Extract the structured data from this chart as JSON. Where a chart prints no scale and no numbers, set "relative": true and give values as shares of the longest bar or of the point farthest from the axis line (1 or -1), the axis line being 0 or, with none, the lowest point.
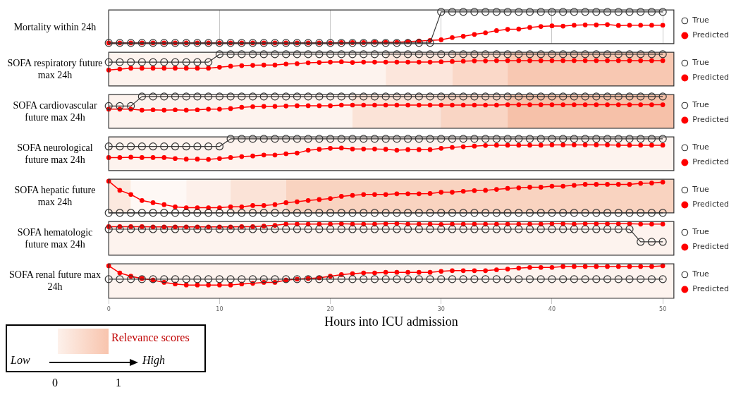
{
  "chart_data": [
    {
      "type": "line",
      "ylabel": "Mortality within 24h",
      "relative": true,
      "x": [
        0,
        1,
        2,
        3,
        4,
        5,
        6,
        7,
        8,
        9,
        10,
        11,
        12,
        13,
        14,
        15,
        16,
        17,
        18,
        19,
        20,
        21,
        22,
        23,
        24,
        25,
        26,
        27,
        28,
        29,
        30,
        31,
        32,
        33,
        34,
        35,
        36,
        37,
        38,
        39,
        40,
        41,
        42,
        43,
        44,
        45,
        46,
        47,
        48,
        49,
        50
      ],
      "xlim": [
        0,
        51
      ],
      "xticks": [
        0,
        10,
        20,
        30,
        40,
        50
      ],
      "tick_labels": false,
      "grid": "x",
      "legend": "right",
      "series": [
        {
          "name": "True",
          "color": "#333333",
          "marker": "circle",
          "values": [
            0.02,
            0.02,
            0.02,
            0.02,
            0.02,
            0.02,
            0.02,
            0.02,
            0.02,
            0.02,
            0.02,
            0.02,
            0.02,
            0.02,
            0.02,
            0.02,
            0.02,
            0.02,
            0.02,
            0.02,
            0.02,
            0.02,
            0.02,
            0.02,
            0.02,
            0.02,
            0.02,
            0.02,
            0.02,
            0.02,
            1,
            1,
            1,
            1,
            1,
            1,
            1,
            1,
            1,
            1,
            1,
            1,
            1,
            1,
            1,
            1,
            1,
            1,
            1,
            1,
            1
          ]
        },
        {
          "name": "Predicted",
          "color": "#ff0000",
          "marker": "circle",
          "values": [
            0.02,
            0.02,
            0.02,
            0.02,
            0.02,
            0.02,
            0.02,
            0.02,
            0.02,
            0.02,
            0.02,
            0.02,
            0.02,
            0.02,
            0.02,
            0.02,
            0.02,
            0.02,
            0.02,
            0.02,
            0.02,
            0.03,
            0.03,
            0.03,
            0.04,
            0.04,
            0.04,
            0.06,
            0.08,
            0.1,
            0.12,
            0.19,
            0.23,
            0.29,
            0.34,
            0.41,
            0.45,
            0.46,
            0.51,
            0.54,
            0.56,
            0.55,
            0.58,
            0.59,
            0.59,
            0.6,
            0.57,
            0.58,
            0.58,
            0.58,
            0.58
          ]
        }
      ]
    },
    {
      "type": "line",
      "ylabel": "SOFA respiratory future max 24h",
      "relative": true,
      "x": [
        0,
        1,
        2,
        3,
        4,
        5,
        6,
        7,
        8,
        9,
        10,
        11,
        12,
        13,
        14,
        15,
        16,
        17,
        18,
        19,
        20,
        21,
        22,
        23,
        24,
        25,
        26,
        27,
        28,
        29,
        30,
        31,
        32,
        33,
        34,
        35,
        36,
        37,
        38,
        39,
        40,
        41,
        42,
        43,
        44,
        45,
        46,
        47,
        48,
        49,
        50
      ],
      "xlim": [
        0,
        51
      ],
      "xticks": [
        0,
        10,
        20,
        30,
        40,
        50
      ],
      "tick_labels": false,
      "grid": "x",
      "legend": "right",
      "bands": [
        {
          "axis": "x",
          "from": 0,
          "to": 25,
          "color": "#fdf3ee"
        },
        {
          "axis": "x",
          "from": 25,
          "to": 31,
          "color": "#fce6dc"
        },
        {
          "axis": "x",
          "from": 31,
          "to": 36,
          "color": "#fad8c8"
        },
        {
          "axis": "x",
          "from": 36,
          "to": 51,
          "color": "#f8c8b2"
        }
      ],
      "series": [
        {
          "name": "True",
          "color": "#333333",
          "marker": "circle",
          "values": [
            0.75,
            0.75,
            0.75,
            0.75,
            0.75,
            0.75,
            0.75,
            0.75,
            0.75,
            0.75,
            1,
            1,
            1,
            1,
            1,
            1,
            1,
            1,
            1,
            1,
            1,
            1,
            1,
            1,
            1,
            1,
            1,
            1,
            1,
            1,
            1,
            1,
            1,
            1,
            1,
            1,
            1,
            1,
            1,
            1,
            1,
            1,
            1,
            1,
            1,
            1,
            1,
            1,
            1,
            1,
            1
          ]
        },
        {
          "name": "Predicted",
          "color": "#ff0000",
          "marker": "circle",
          "values": [
            0.5,
            0.53,
            0.56,
            0.56,
            0.56,
            0.56,
            0.56,
            0.56,
            0.56,
            0.56,
            0.59,
            0.62,
            0.64,
            0.65,
            0.66,
            0.66,
            0.69,
            0.7,
            0.73,
            0.74,
            0.75,
            0.76,
            0.74,
            0.75,
            0.75,
            0.75,
            0.75,
            0.75,
            0.75,
            0.75,
            0.76,
            0.77,
            0.78,
            0.79,
            0.79,
            0.8,
            0.8,
            0.8,
            0.8,
            0.8,
            0.8,
            0.8,
            0.8,
            0.8,
            0.8,
            0.8,
            0.8,
            0.8,
            0.8,
            0.8,
            0.8
          ]
        }
      ]
    },
    {
      "type": "line",
      "ylabel": "SOFA cardiovascular future max 24h",
      "relative": true,
      "x": [
        0,
        1,
        2,
        3,
        4,
        5,
        6,
        7,
        8,
        9,
        10,
        11,
        12,
        13,
        14,
        15,
        16,
        17,
        18,
        19,
        20,
        21,
        22,
        23,
        24,
        25,
        26,
        27,
        28,
        29,
        30,
        31,
        32,
        33,
        34,
        35,
        36,
        37,
        38,
        39,
        40,
        41,
        42,
        43,
        44,
        45,
        46,
        47,
        48,
        49,
        50
      ],
      "xlim": [
        0,
        51
      ],
      "xticks": [
        0,
        10,
        20,
        30,
        40,
        50
      ],
      "tick_labels": false,
      "grid": "x",
      "legend": "right",
      "bands": [
        {
          "axis": "x",
          "from": 0,
          "to": 22,
          "color": "#fdf3ee"
        },
        {
          "axis": "x",
          "from": 22,
          "to": 30,
          "color": "#fbe3d7"
        },
        {
          "axis": "x",
          "from": 30,
          "to": 36,
          "color": "#f9d5c4"
        },
        {
          "axis": "x",
          "from": 36,
          "to": 51,
          "color": "#f6c1a9"
        }
      ],
      "series": [
        {
          "name": "True",
          "color": "#333333",
          "marker": "circle",
          "values": [
            0.7,
            0.7,
            0.7,
            1,
            1,
            1,
            1,
            1,
            1,
            1,
            1,
            1,
            1,
            1,
            1,
            1,
            1,
            1,
            1,
            1,
            1,
            1,
            1,
            1,
            1,
            1,
            1,
            1,
            1,
            1,
            1,
            1,
            1,
            1,
            1,
            1,
            1,
            1,
            1,
            1,
            1,
            1,
            1,
            1,
            1,
            1,
            1,
            1,
            1,
            1,
            1
          ]
        },
        {
          "name": "Predicted",
          "color": "#ff0000",
          "marker": "circle",
          "values": [
            0.6,
            0.6,
            0.6,
            0.57,
            0.58,
            0.57,
            0.58,
            0.57,
            0.58,
            0.6,
            0.6,
            0.62,
            0.66,
            0.68,
            0.69,
            0.69,
            0.7,
            0.71,
            0.71,
            0.71,
            0.71,
            0.73,
            0.73,
            0.73,
            0.73,
            0.73,
            0.73,
            0.73,
            0.73,
            0.73,
            0.73,
            0.73,
            0.73,
            0.73,
            0.73,
            0.73,
            0.74,
            0.74,
            0.74,
            0.74,
            0.74,
            0.74,
            0.74,
            0.74,
            0.74,
            0.74,
            0.74,
            0.74,
            0.74,
            0.74,
            0.74
          ]
        }
      ]
    },
    {
      "type": "line",
      "ylabel": "SOFA neurological future max 24h",
      "relative": true,
      "x": [
        0,
        1,
        2,
        3,
        4,
        5,
        6,
        7,
        8,
        9,
        10,
        11,
        12,
        13,
        14,
        15,
        16,
        17,
        18,
        19,
        20,
        21,
        22,
        23,
        24,
        25,
        26,
        27,
        28,
        29,
        30,
        31,
        32,
        33,
        34,
        35,
        36,
        37,
        38,
        39,
        40,
        41,
        42,
        43,
        44,
        45,
        46,
        47,
        48,
        49,
        50
      ],
      "xlim": [
        0,
        51
      ],
      "xticks": [
        0,
        10,
        20,
        30,
        40,
        50
      ],
      "tick_labels": false,
      "grid": "x",
      "legend": "right",
      "bands": [
        {
          "axis": "x",
          "from": 0,
          "to": 51,
          "color": "#fdf3ee"
        }
      ],
      "series": [
        {
          "name": "True",
          "color": "#333333",
          "marker": "circle",
          "values": [
            0.76,
            0.76,
            0.76,
            0.76,
            0.76,
            0.76,
            0.76,
            0.76,
            0.76,
            0.76,
            0.76,
            1,
            1,
            1,
            1,
            1,
            1,
            1,
            1,
            1,
            1,
            1,
            1,
            1,
            1,
            1,
            1,
            1,
            1,
            1,
            1,
            1,
            1,
            1,
            1,
            1,
            1,
            1,
            1,
            1,
            1,
            1,
            1,
            1,
            1,
            1,
            1,
            1,
            1,
            1,
            1
          ]
        },
        {
          "name": "Predicted",
          "color": "#ff0000",
          "marker": "circle",
          "values": [
            0.41,
            0.41,
            0.42,
            0.41,
            0.41,
            0.41,
            0.38,
            0.36,
            0.36,
            0.35,
            0.38,
            0.41,
            0.44,
            0.46,
            0.49,
            0.49,
            0.53,
            0.55,
            0.64,
            0.67,
            0.7,
            0.71,
            0.68,
            0.68,
            0.68,
            0.67,
            0.64,
            0.66,
            0.66,
            0.66,
            0.7,
            0.73,
            0.75,
            0.77,
            0.79,
            0.8,
            0.8,
            0.8,
            0.8,
            0.8,
            0.81,
            0.81,
            0.81,
            0.81,
            0.81,
            0.81,
            0.8,
            0.8,
            0.8,
            0.8,
            0.8
          ]
        }
      ]
    },
    {
      "type": "line",
      "ylabel": "SOFA hepatic future max 24h",
      "relative": true,
      "x": [
        0,
        1,
        2,
        3,
        4,
        5,
        6,
        7,
        8,
        9,
        10,
        11,
        12,
        13,
        14,
        15,
        16,
        17,
        18,
        19,
        20,
        21,
        22,
        23,
        24,
        25,
        26,
        27,
        28,
        29,
        30,
        31,
        32,
        33,
        34,
        35,
        36,
        37,
        38,
        39,
        40,
        41,
        42,
        43,
        44,
        45,
        46,
        47,
        48,
        49,
        50
      ],
      "xlim": [
        0,
        51
      ],
      "xticks": [
        0,
        10,
        20,
        30,
        40,
        50
      ],
      "tick_labels": false,
      "grid": "x",
      "legend": "right",
      "bands": [
        {
          "axis": "x",
          "from": 0,
          "to": 2,
          "color": "#fce9df"
        },
        {
          "axis": "x",
          "from": 2,
          "to": 7,
          "color": "#fef8f5"
        },
        {
          "axis": "x",
          "from": 7,
          "to": 11,
          "color": "#fdf0ea"
        },
        {
          "axis": "x",
          "from": 11,
          "to": 16,
          "color": "#fbe3d7"
        },
        {
          "axis": "x",
          "from": 16,
          "to": 51,
          "color": "#f9d3c0"
        }
      ],
      "series": [
        {
          "name": "True",
          "color": "#333333",
          "marker": "circle",
          "values": [
            0,
            0,
            0,
            0,
            0,
            0,
            0,
            0,
            0,
            0,
            0,
            0,
            0,
            0,
            0,
            0,
            0,
            0,
            0,
            0,
            0,
            0,
            0,
            0,
            0,
            0,
            0,
            0,
            0,
            0,
            0,
            0,
            0,
            0,
            0,
            0,
            0,
            0,
            0,
            0,
            0,
            0,
            0,
            0,
            0,
            0,
            0,
            0,
            0,
            0,
            0
          ]
        },
        {
          "name": "Predicted",
          "color": "#ff0000",
          "marker": "circle",
          "values": [
            1,
            0.71,
            0.58,
            0.39,
            0.32,
            0.26,
            0.19,
            0.16,
            0.16,
            0.16,
            0.16,
            0.19,
            0.19,
            0.23,
            0.23,
            0.26,
            0.32,
            0.35,
            0.39,
            0.42,
            0.45,
            0.52,
            0.55,
            0.58,
            0.58,
            0.58,
            0.6,
            0.6,
            0.6,
            0.61,
            0.65,
            0.65,
            0.68,
            0.7,
            0.71,
            0.74,
            0.77,
            0.79,
            0.81,
            0.81,
            0.84,
            0.84,
            0.87,
            0.9,
            0.9,
            0.9,
            0.9,
            0.9,
            0.93,
            0.94,
            0.97
          ]
        }
      ]
    },
    {
      "type": "line",
      "ylabel": "SOFA hematologic future max 24h",
      "relative": true,
      "x": [
        0,
        1,
        2,
        3,
        4,
        5,
        6,
        7,
        8,
        9,
        10,
        11,
        12,
        13,
        14,
        15,
        16,
        17,
        18,
        19,
        20,
        21,
        22,
        23,
        24,
        25,
        26,
        27,
        28,
        29,
        30,
        31,
        32,
        33,
        34,
        35,
        36,
        37,
        38,
        39,
        40,
        41,
        42,
        43,
        44,
        45,
        46,
        47,
        48,
        49,
        50
      ],
      "xlim": [
        0,
        51
      ],
      "xticks": [
        0,
        10,
        20,
        30,
        40,
        50
      ],
      "tick_labels": false,
      "grid": "x",
      "legend": "right",
      "bands": [
        {
          "axis": "x",
          "from": 0,
          "to": 51,
          "color": "#fdf3ee"
        }
      ],
      "series": [
        {
          "name": "True",
          "color": "#333333",
          "marker": "circle",
          "values": [
            0.82,
            0.82,
            0.82,
            0.82,
            0.82,
            0.82,
            0.82,
            0.82,
            0.82,
            0.82,
            0.82,
            0.82,
            0.82,
            0.82,
            0.82,
            0.82,
            0.82,
            0.82,
            0.82,
            0.82,
            0.82,
            0.82,
            0.82,
            0.82,
            0.82,
            0.82,
            0.82,
            0.82,
            0.82,
            0.82,
            0.82,
            0.82,
            0.82,
            0.82,
            0.82,
            0.82,
            0.82,
            0.82,
            0.82,
            0.82,
            0.82,
            0.82,
            0.82,
            0.82,
            0.82,
            0.82,
            0.82,
            0.82,
            0.42,
            0.42,
            0.42
          ]
        },
        {
          "name": "Predicted",
          "color": "#ff0000",
          "marker": "circle",
          "values": [
            0.9,
            0.9,
            0.9,
            0.9,
            0.89,
            0.89,
            0.89,
            0.89,
            0.89,
            0.89,
            0.89,
            0.89,
            0.9,
            0.9,
            0.92,
            0.94,
            0.98,
            0.98,
            0.98,
            0.98,
            0.98,
            0.99,
            0.98,
            0.98,
            0.98,
            0.99,
            1,
            0.98,
            0.98,
            0.98,
            0.97,
            0.98,
            0.98,
            0.98,
            0.98,
            0.98,
            0.98,
            0.98,
            0.98,
            0.98,
            0.99,
            0.99,
            0.98,
            0.99,
            0.99,
            0.99,
            0.99,
            0.99,
            0.98,
            0.98,
            0.98
          ]
        }
      ]
    },
    {
      "type": "line",
      "ylabel": "SOFA renal future max 24h",
      "xlabel": "Hours into ICU admission",
      "relative": true,
      "x": [
        0,
        1,
        2,
        3,
        4,
        5,
        6,
        7,
        8,
        9,
        10,
        11,
        12,
        13,
        14,
        15,
        16,
        17,
        18,
        19,
        20,
        21,
        22,
        23,
        24,
        25,
        26,
        27,
        28,
        29,
        30,
        31,
        32,
        33,
        34,
        35,
        36,
        37,
        38,
        39,
        40,
        41,
        42,
        43,
        44,
        45,
        46,
        47,
        48,
        49,
        50
      ],
      "xlim": [
        0,
        51
      ],
      "xticks": [
        0,
        10,
        20,
        30,
        40,
        50
      ],
      "tick_labels": "x",
      "grid": "x",
      "legend": "right",
      "bands": [
        {
          "axis": "x",
          "from": 0,
          "to": 51,
          "color": "#fdf3ee"
        }
      ],
      "annotations": [
        "Relevance scores",
        "Low",
        "High",
        "0",
        "1"
      ],
      "series": [
        {
          "name": "True",
          "color": "#333333",
          "marker": "circle",
          "values": [
            0.59,
            0.59,
            0.59,
            0.59,
            0.59,
            0.59,
            0.59,
            0.59,
            0.59,
            0.59,
            0.59,
            0.59,
            0.59,
            0.59,
            0.59,
            0.59,
            0.59,
            0.59,
            0.59,
            0.59,
            0.59,
            0.59,
            0.59,
            0.59,
            0.59,
            0.59,
            0.59,
            0.59,
            0.59,
            0.59,
            0.59,
            0.59,
            0.59,
            0.59,
            0.59,
            0.59,
            0.59,
            0.59,
            0.59,
            0.59,
            0.59,
            0.59,
            0.59,
            0.59,
            0.59,
            0.59,
            0.59,
            0.59,
            0.59,
            0.59,
            0.59
          ]
        },
        {
          "name": "Predicted",
          "color": "#ff0000",
          "marker": "circle",
          "values": [
            1,
            0.78,
            0.68,
            0.61,
            0.56,
            0.49,
            0.44,
            0.41,
            0.41,
            0.41,
            0.41,
            0.41,
            0.44,
            0.46,
            0.49,
            0.49,
            0.56,
            0.59,
            0.61,
            0.63,
            0.68,
            0.73,
            0.76,
            0.78,
            0.78,
            0.8,
            0.8,
            0.8,
            0.8,
            0.8,
            0.83,
            0.85,
            0.85,
            0.85,
            0.85,
            0.88,
            0.9,
            0.93,
            0.95,
            0.95,
            0.95,
            0.98,
            0.98,
            0.98,
            0.98,
            0.98,
            0.98,
            0.98,
            0.98,
            0.98,
            1
          ]
        }
      ]
    }
  ]
}
